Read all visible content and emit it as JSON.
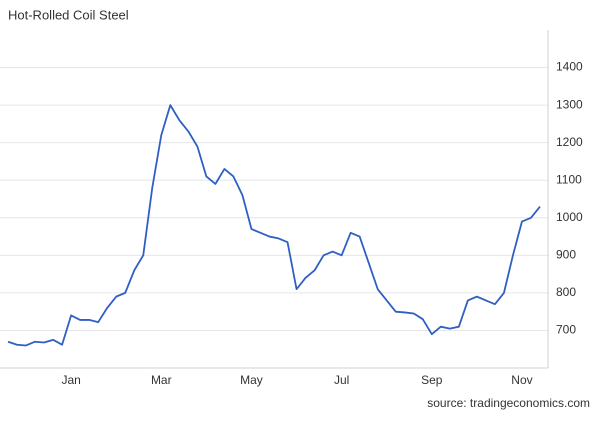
{
  "chart_data": {
    "type": "line",
    "title": "Hot-Rolled Coil Steel",
    "source": "source: tradingeconomics.com",
    "categories": [
      null,
      null,
      null,
      null,
      null,
      null,
      null,
      "Jan",
      null,
      null,
      null,
      null,
      null,
      null,
      null,
      null,
      null,
      "Mar",
      null,
      null,
      null,
      null,
      null,
      null,
      null,
      null,
      null,
      "May",
      null,
      null,
      null,
      null,
      null,
      null,
      null,
      null,
      null,
      "Jul",
      null,
      null,
      null,
      null,
      null,
      null,
      null,
      null,
      null,
      "Sep",
      null,
      null,
      null,
      null,
      null,
      null,
      null,
      null,
      null,
      "Nov",
      null,
      null
    ],
    "values": [
      670,
      662,
      660,
      670,
      668,
      675,
      662,
      740,
      728,
      728,
      722,
      760,
      790,
      800,
      860,
      900,
      1080,
      1220,
      1300,
      1260,
      1230,
      1190,
      1110,
      1090,
      1130,
      1110,
      1060,
      970,
      960,
      950,
      945,
      935,
      810,
      840,
      860,
      900,
      910,
      900,
      960,
      950,
      880,
      810,
      780,
      750,
      748,
      745,
      730,
      690,
      710,
      705,
      710,
      780,
      790,
      780,
      770,
      800,
      900,
      990,
      1000,
      1030
    ],
    "color": "#2f5fc4",
    "ylim": [
      600,
      1500
    ],
    "yticks": [
      700,
      800,
      900,
      1000,
      1100,
      1200,
      1300,
      1400
    ],
    "grid": true,
    "y_axis_side": "right"
  }
}
